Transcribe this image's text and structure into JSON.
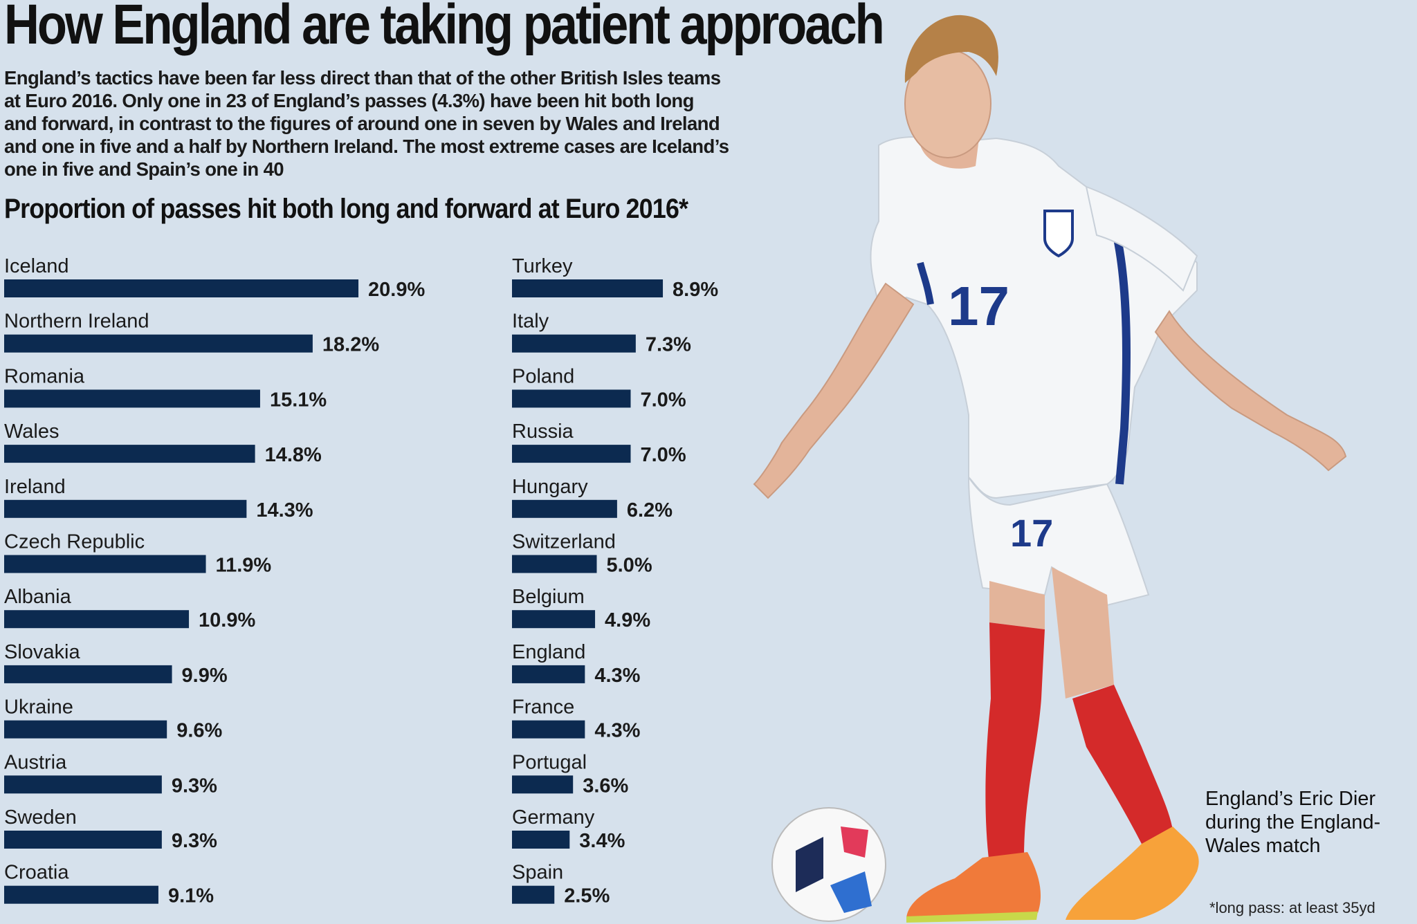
{
  "headline": "How England are taking patient approach",
  "intro": "England’s tactics have been far less direct than that of the other British Isles teams at Euro 2016. Only one in 23 of England’s passes (4.3%) have been hit both long and forward, in contrast to the figures of around one in seven by Wales and Ireland and one in five and a half by Northern Ireland. The most extreme cases are Iceland’s one in five and Spain’s one in 40",
  "chart_data": {
    "type": "bar",
    "title": "Proportion of passes hit both long and forward at Euro 2016*",
    "xlabel": "",
    "ylabel": "",
    "unit": "%",
    "xlim": [
      0,
      21
    ],
    "categories": [
      "Iceland",
      "Northern Ireland",
      "Romania",
      "Wales",
      "Ireland",
      "Czech Republic",
      "Albania",
      "Slovakia",
      "Ukraine",
      "Austria",
      "Sweden",
      "Croatia",
      "Turkey",
      "Italy",
      "Poland",
      "Russia",
      "Hungary",
      "Switzerland",
      "Belgium",
      "England",
      "France",
      "Portugal",
      "Germany",
      "Spain"
    ],
    "values": [
      20.9,
      18.2,
      15.1,
      14.8,
      14.3,
      11.9,
      10.9,
      9.9,
      9.6,
      9.3,
      9.3,
      9.1,
      8.9,
      7.3,
      7.0,
      7.0,
      6.2,
      5.0,
      4.9,
      4.3,
      4.3,
      3.6,
      3.4,
      2.5
    ],
    "labels": [
      "20.9%",
      "18.2%",
      "15.1%",
      "14.8%",
      "14.3%",
      "11.9%",
      "10.9%",
      "9.9%",
      "9.6%",
      "9.3%",
      "9.3%",
      "9.1%",
      "8.9%",
      "7.3%",
      "7.0%",
      "7.0%",
      "6.2%",
      "5.0%",
      "4.9%",
      "4.3%",
      "4.3%",
      "3.6%",
      "3.4%",
      "2.5%"
    ],
    "legend": "none",
    "grid": false
  },
  "photo": {
    "description_name": "england-player-photo",
    "shirt_number": "17"
  },
  "caption": "England’s Eric Dier during the England-Wales match",
  "footnote": "*long pass: at least 35yd",
  "colors": {
    "background": "#d6e1ec",
    "bar": "#0c2a50",
    "sock": "#d42a2a",
    "kit_trim": "#1d3a8a"
  }
}
